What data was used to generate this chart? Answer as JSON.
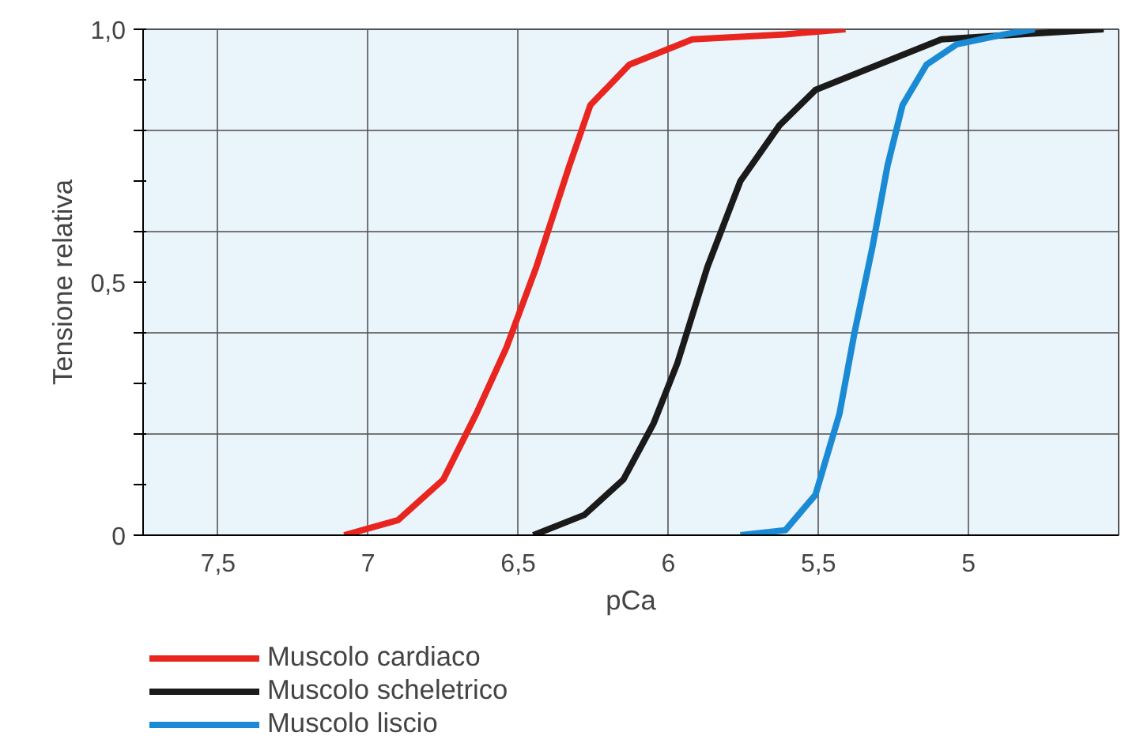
{
  "chart_data": {
    "type": "line",
    "xlabel": "pCa",
    "ylabel": "Tensione relativa",
    "xlim": [
      7.75,
      4.5
    ],
    "xticks": [
      {
        "value": 7.5,
        "label": "7,5"
      },
      7,
      {
        "value": 6.5,
        "label": "6,5"
      },
      6,
      {
        "value": 5.5,
        "label": "5,5"
      },
      5
    ],
    "ylim": [
      0,
      1
    ],
    "yticks": [
      0,
      {
        "value": 0.1,
        "label": null
      },
      {
        "value": 0.2,
        "label": null
      },
      {
        "value": 0.3,
        "label": null
      },
      {
        "value": 0.4,
        "label": null
      },
      {
        "value": 0.5,
        "label": "0,5"
      },
      {
        "value": 0.6,
        "label": null
      },
      {
        "value": 0.7,
        "label": null
      },
      {
        "value": 0.8,
        "label": null
      },
      {
        "value": 0.9,
        "label": null
      },
      {
        "value": 1.0,
        "label": "1,0"
      }
    ],
    "grid": true,
    "legend": "bottom",
    "marker": "none",
    "line_style": "solid",
    "series": [
      {
        "name": "Muscolo cardiaco",
        "color": "#e8251f",
        "x": [
          7.08,
          6.9,
          6.75,
          6.64,
          6.54,
          6.44,
          6.33,
          6.26,
          6.13,
          5.92,
          5.61,
          5.41
        ],
        "values": [
          0.0,
          0.03,
          0.11,
          0.24,
          0.37,
          0.53,
          0.73,
          0.85,
          0.93,
          0.98,
          0.99,
          1.0
        ]
      },
      {
        "name": "Muscolo scheletrico",
        "color": "#1a1a1a",
        "x": [
          6.45,
          6.28,
          6.15,
          6.05,
          5.97,
          5.87,
          5.76,
          5.63,
          5.51,
          5.3,
          5.09,
          4.83,
          4.55
        ],
        "values": [
          0.0,
          0.04,
          0.11,
          0.22,
          0.34,
          0.53,
          0.7,
          0.81,
          0.88,
          0.93,
          0.98,
          0.99,
          1.0
        ]
      },
      {
        "name": "Muscolo liscio",
        "color": "#1a8ad4",
        "x": [
          5.76,
          5.61,
          5.51,
          5.43,
          5.38,
          5.32,
          5.27,
          5.22,
          5.14,
          5.04,
          4.88,
          4.78
        ],
        "values": [
          0.0,
          0.01,
          0.08,
          0.24,
          0.4,
          0.57,
          0.73,
          0.85,
          0.93,
          0.97,
          0.99,
          1.0
        ]
      }
    ]
  }
}
